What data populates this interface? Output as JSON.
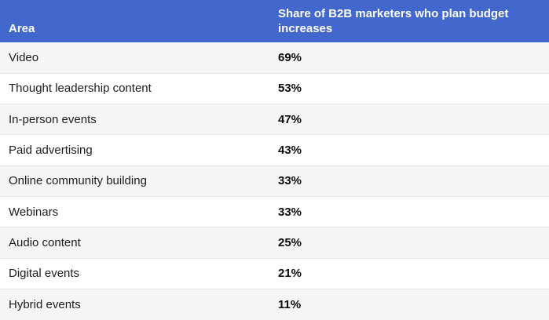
{
  "table": {
    "columns": {
      "area_header": "Area",
      "share_header": "Share of B2B marketers who plan budget increases"
    },
    "rows": [
      {
        "area": "Video",
        "value": "69%"
      },
      {
        "area": "Thought leadership content",
        "value": "53%"
      },
      {
        "area": "In-person events",
        "value": "47%"
      },
      {
        "area": "Paid advertising",
        "value": "43%"
      },
      {
        "area": "Online community building",
        "value": "33%"
      },
      {
        "area": "Webinars",
        "value": "33%"
      },
      {
        "area": "Audio content",
        "value": "25%"
      },
      {
        "area": "Digital events",
        "value": "21%"
      },
      {
        "area": "Hybrid events",
        "value": "11%"
      }
    ],
    "colors": {
      "header_bg": "#4267CD",
      "header_text": "#ffffff",
      "row_alt_bg": "#f5f5f6",
      "row_bg": "#ffffff",
      "divider": "#e4e4e4",
      "label_text": "#1c1c1c",
      "value_text": "#0b0b0b"
    }
  }
}
